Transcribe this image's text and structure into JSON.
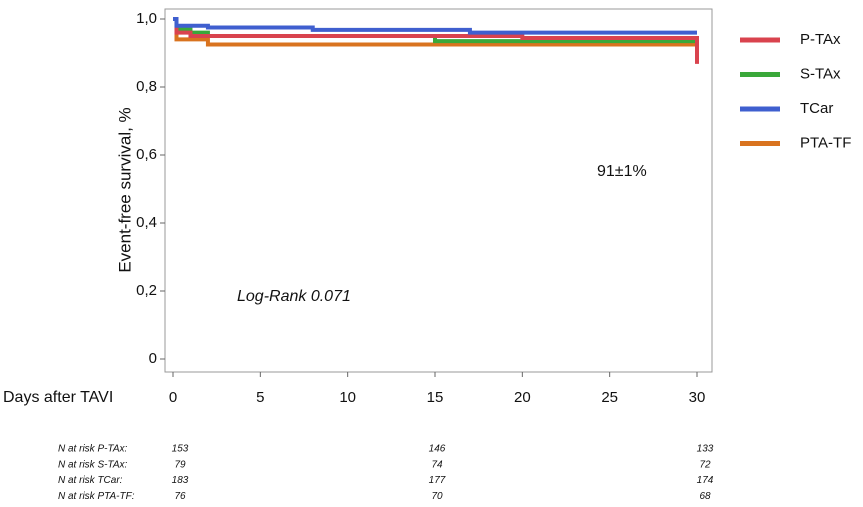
{
  "chart_data": {
    "type": "line",
    "step": true,
    "ylabel": "Event-free survival, %",
    "xlabel": "Days after TAVI",
    "annotations": [
      "91±1%",
      "Log-Rank 0.071"
    ],
    "xlim": [
      0,
      30
    ],
    "xticks": [
      0,
      5,
      10,
      15,
      20,
      25,
      30
    ],
    "ylim": [
      0,
      1
    ],
    "yticks": [
      0,
      {
        "value": 0.2,
        "label": "0,2"
      },
      {
        "value": 0.4,
        "label": "0,4"
      },
      {
        "value": 0.6,
        "label": "0,6"
      },
      {
        "value": 0.8,
        "label": "0,8"
      },
      {
        "value": 1,
        "label": "1,0"
      }
    ],
    "series": [
      {
        "name": "P-TAx",
        "color": "#d9434e",
        "x": [
          0,
          0.2,
          1,
          20,
          30,
          30
        ],
        "values": [
          1,
          0.96,
          0.95,
          0.944,
          0.944,
          0.868
        ]
      },
      {
        "name": "S-TAx",
        "color": "#3aa83a",
        "x": [
          0,
          0.2,
          1,
          2,
          15,
          30
        ],
        "values": [
          1,
          0.97,
          0.96,
          0.95,
          0.935,
          0.935
        ]
      },
      {
        "name": "TCar",
        "color": "#3f5fcf",
        "x": [
          0,
          0.2,
          2,
          8,
          17,
          30
        ],
        "values": [
          1,
          0.98,
          0.975,
          0.968,
          0.96,
          0.96
        ]
      },
      {
        "name": "PTA-TF",
        "color": "#d9731f",
        "x": [
          0,
          0.2,
          2,
          30
        ],
        "values": [
          1,
          0.94,
          0.925,
          0.925
        ]
      }
    ],
    "risk_table": [
      {
        "label": "N at risk P-TAx:",
        "values": [
          153,
          146,
          133
        ]
      },
      {
        "label": "N at risk S-TAx:",
        "values": [
          79,
          74,
          72
        ]
      },
      {
        "label": "N at risk TCar:",
        "values": [
          183,
          177,
          174
        ]
      },
      {
        "label": "N at risk PTA-TF:",
        "values": [
          76,
          70,
          68
        ]
      }
    ]
  }
}
